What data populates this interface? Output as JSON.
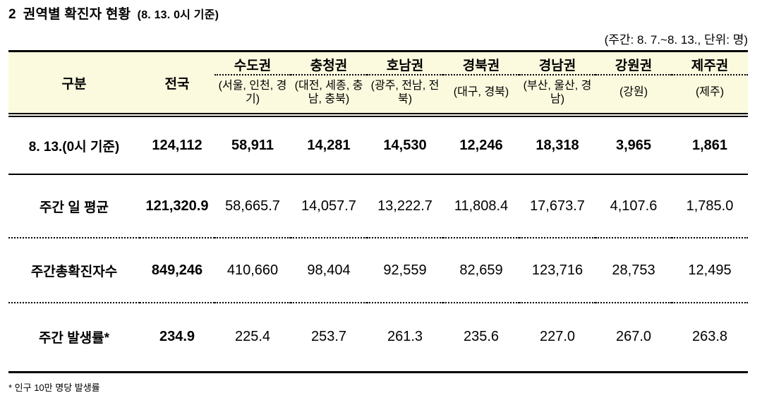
{
  "title": {
    "number": "2",
    "text": "권역별 확진자 현황",
    "suffix": "(8. 13. 0시 기준)"
  },
  "note": "(주간: 8. 7.~8. 13., 단위: 명)",
  "table": {
    "corner_label": "구분",
    "national_label": "전국",
    "regions": [
      {
        "name": "수도권",
        "sub": "(서울, 인천, 경기)"
      },
      {
        "name": "충청권",
        "sub": "(대전, 세종, 충남, 충북)"
      },
      {
        "name": "호남권",
        "sub": "(광주, 전남, 전북)"
      },
      {
        "name": "경북권",
        "sub": "(대구, 경북)"
      },
      {
        "name": "경남권",
        "sub": "(부산, 울산, 경남)"
      },
      {
        "name": "강원권",
        "sub": "(강원)"
      },
      {
        "name": "제주권",
        "sub": "(제주)"
      }
    ],
    "rows": [
      {
        "label": "8. 13.(0시 기준)",
        "national": "124,112",
        "values": [
          "58,911",
          "14,281",
          "14,530",
          "12,246",
          "18,318",
          "3,965",
          "1,861"
        ]
      },
      {
        "label": "주간 일 평균",
        "national": "121,320.9",
        "values": [
          "58,665.7",
          "14,057.7",
          "13,222.7",
          "11,808.4",
          "17,673.7",
          "4,107.6",
          "1,785.0"
        ]
      },
      {
        "label": "주간총확진자수",
        "national": "849,246",
        "values": [
          "410,660",
          "98,404",
          "92,559",
          "82,659",
          "123,716",
          "28,753",
          "12,495"
        ]
      },
      {
        "label": "주간 발생률*",
        "national": "234.9",
        "values": [
          "225.4",
          "253.7",
          "261.3",
          "235.6",
          "227.0",
          "267.0",
          "263.8"
        ]
      }
    ]
  },
  "footnote": "* 인구 10만 명당 발생률",
  "colors": {
    "header_bg": "#FBFADE",
    "border": "#000000",
    "text": "#000000"
  }
}
